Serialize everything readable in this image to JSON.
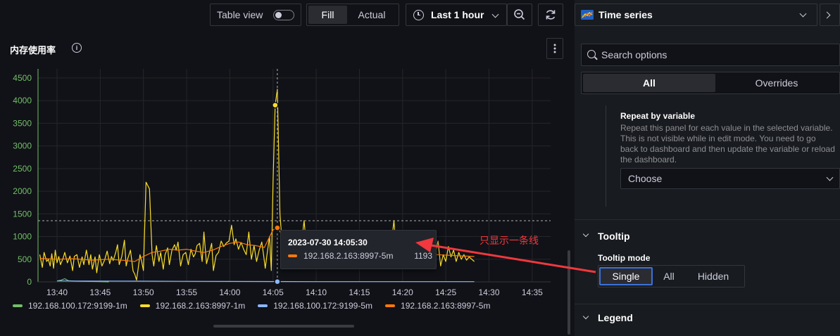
{
  "toolbar": {
    "table_view_label": "Table view",
    "fill_label": "Fill",
    "actual_label": "Actual",
    "time_range_label": "Last 1 hour",
    "clock_icon": "clock-icon",
    "zoom_out_icon": "zoom-out-icon",
    "refresh_icon": "refresh-icon"
  },
  "panel": {
    "title": "内存使用率",
    "info_icon": "info-icon",
    "menu_icon": "kebab-menu-icon"
  },
  "chart_data": {
    "type": "line",
    "yticks": [
      0,
      500,
      1000,
      1500,
      2000,
      2500,
      3000,
      3500,
      4000,
      4500
    ],
    "ylim": [
      0,
      4700
    ],
    "xticks": [
      "13:40",
      "13:45",
      "13:50",
      "13:55",
      "14:00",
      "14:05",
      "14:10",
      "14:15",
      "14:20",
      "14:25",
      "14:30",
      "14:35"
    ],
    "threshold": 1350,
    "hover_time": "14:05:30",
    "series": [
      {
        "name": "192.168.100.172:9199-1m",
        "color": "#73bf69",
        "points": [
          [
            0.0,
            20
          ],
          [
            0.5,
            40
          ],
          [
            0.9,
            70
          ],
          [
            1.3,
            25
          ],
          [
            2.0,
            15
          ],
          [
            4.0,
            10
          ],
          [
            5.0,
            5
          ],
          [
            6.0,
            0
          ]
        ]
      },
      {
        "name": "192.168.2.163:8997-1m",
        "color": "#fade2a",
        "points": [
          [
            -2.0,
            600
          ],
          [
            -1.7,
            320
          ],
          [
            -1.5,
            650
          ],
          [
            -1.2,
            450
          ],
          [
            -1.0,
            500
          ],
          [
            -0.8,
            350
          ],
          [
            -0.6,
            620
          ],
          [
            -0.4,
            300
          ],
          [
            -0.2,
            700
          ],
          [
            0.0,
            420
          ],
          [
            0.2,
            560
          ],
          [
            0.4,
            380
          ],
          [
            0.7,
            520
          ],
          [
            0.9,
            650
          ],
          [
            1.2,
            420
          ],
          [
            1.5,
            570
          ],
          [
            1.8,
            250
          ],
          [
            2.0,
            560
          ],
          [
            2.3,
            600
          ],
          [
            2.6,
            320
          ],
          [
            2.9,
            550
          ],
          [
            3.1,
            380
          ],
          [
            3.4,
            700
          ],
          [
            3.7,
            380
          ],
          [
            3.9,
            600
          ],
          [
            4.1,
            280
          ],
          [
            4.4,
            550
          ],
          [
            4.6,
            200
          ],
          [
            4.9,
            600
          ],
          [
            5.2,
            350
          ],
          [
            5.5,
            480
          ],
          [
            5.8,
            680
          ],
          [
            6.1,
            400
          ],
          [
            6.3,
            560
          ],
          [
            6.5,
            470
          ],
          [
            6.8,
            650
          ],
          [
            7.0,
            820
          ],
          [
            7.2,
            380
          ],
          [
            7.5,
            560
          ],
          [
            7.8,
            920
          ],
          [
            8.0,
            350
          ],
          [
            8.2,
            520
          ],
          [
            8.5,
            700
          ],
          [
            8.8,
            240
          ],
          [
            9.0,
            170
          ],
          [
            9.2,
            40
          ],
          [
            9.4,
            300
          ],
          [
            9.6,
            600
          ],
          [
            9.8,
            450
          ],
          [
            10.0,
            250
          ],
          [
            10.3,
            2200
          ],
          [
            10.7,
            2050
          ],
          [
            11.0,
            600
          ],
          [
            11.2,
            350
          ],
          [
            11.5,
            800
          ],
          [
            11.8,
            450
          ],
          [
            12.0,
            650
          ],
          [
            12.3,
            280
          ],
          [
            12.5,
            600
          ],
          [
            12.8,
            750
          ],
          [
            13.0,
            380
          ],
          [
            13.3,
            700
          ],
          [
            13.6,
            820
          ],
          [
            13.8,
            700
          ],
          [
            14.0,
            880
          ],
          [
            14.3,
            350
          ],
          [
            14.6,
            600
          ],
          [
            14.9,
            650
          ],
          [
            15.2,
            380
          ],
          [
            15.5,
            720
          ],
          [
            15.8,
            550
          ],
          [
            16.0,
            620
          ],
          [
            16.2,
            800
          ],
          [
            16.5,
            850
          ],
          [
            16.8,
            450
          ],
          [
            17.0,
            1100
          ],
          [
            17.3,
            400
          ],
          [
            17.6,
            620
          ],
          [
            17.9,
            850
          ],
          [
            18.1,
            250
          ],
          [
            18.4,
            580
          ],
          [
            18.7,
            650
          ],
          [
            19.0,
            900
          ],
          [
            19.3,
            780
          ],
          [
            19.6,
            860
          ],
          [
            19.9,
            900
          ],
          [
            20.2,
            1250
          ],
          [
            20.5,
            820
          ],
          [
            20.7,
            950
          ],
          [
            21.0,
            720
          ],
          [
            21.3,
            870
          ],
          [
            21.6,
            720
          ],
          [
            21.9,
            600
          ],
          [
            22.2,
            1100
          ],
          [
            22.5,
            500
          ],
          [
            22.8,
            800
          ],
          [
            23.1,
            450
          ],
          [
            23.4,
            700
          ],
          [
            23.7,
            880
          ],
          [
            23.9,
            600
          ],
          [
            24.1,
            300
          ],
          [
            24.3,
            600
          ],
          [
            24.6,
            1000
          ],
          [
            24.8,
            250
          ],
          [
            25.0,
            2200
          ],
          [
            25.25,
            3900
          ],
          [
            25.5,
            4250
          ],
          [
            25.8,
            1500
          ],
          [
            26.0,
            1000
          ],
          [
            26.3,
            800
          ],
          [
            26.6,
            350
          ],
          [
            26.9,
            600
          ],
          [
            27.2,
            900
          ],
          [
            27.5,
            650
          ],
          [
            27.8,
            380
          ],
          [
            28.0,
            700
          ],
          [
            28.3,
            850
          ],
          [
            28.6,
            1350
          ],
          [
            28.9,
            700
          ],
          [
            29.2,
            500
          ],
          [
            29.4,
            350
          ],
          [
            29.7,
            700
          ],
          [
            30.0,
            600
          ],
          [
            30.3,
            800
          ],
          [
            30.6,
            450
          ],
          [
            30.9,
            650
          ],
          [
            31.2,
            1050
          ],
          [
            31.5,
            600
          ],
          [
            31.8,
            1100
          ],
          [
            32.1,
            650
          ],
          [
            32.4,
            850
          ],
          [
            32.7,
            300
          ],
          [
            33.0,
            600
          ],
          [
            33.3,
            800
          ],
          [
            33.6,
            500
          ],
          [
            33.9,
            1000
          ],
          [
            34.2,
            650
          ],
          [
            34.5,
            700
          ],
          [
            34.8,
            950
          ],
          [
            35.1,
            500
          ],
          [
            35.4,
            700
          ],
          [
            35.7,
            650
          ],
          [
            36.0,
            900
          ],
          [
            36.3,
            600
          ],
          [
            36.6,
            800
          ],
          [
            36.9,
            450
          ],
          [
            37.2,
            700
          ],
          [
            37.5,
            950
          ],
          [
            37.8,
            600
          ],
          [
            38.1,
            1000
          ],
          [
            38.4,
            650
          ],
          [
            38.7,
            850
          ],
          [
            39.0,
            1350
          ],
          [
            39.3,
            600
          ],
          [
            39.6,
            900
          ],
          [
            39.9,
            1100
          ],
          [
            40.2,
            750
          ],
          [
            40.5,
            950
          ],
          [
            40.8,
            600
          ],
          [
            41.1,
            850
          ],
          [
            41.4,
            1000
          ],
          [
            41.7,
            400
          ],
          [
            42.0,
            600
          ],
          [
            42.3,
            350
          ],
          [
            42.6,
            900
          ],
          [
            42.9,
            620
          ],
          [
            43.2,
            1000
          ],
          [
            43.5,
            550
          ],
          [
            43.8,
            650
          ],
          [
            44.1,
            900
          ],
          [
            44.4,
            350
          ],
          [
            44.7,
            600
          ],
          [
            45.0,
            450
          ],
          [
            45.3,
            780
          ],
          [
            45.6,
            550
          ],
          [
            45.9,
            700
          ],
          [
            46.2,
            450
          ],
          [
            46.5,
            650
          ],
          [
            46.8,
            500
          ],
          [
            47.1,
            600
          ],
          [
            47.4,
            480
          ],
          [
            47.7,
            550
          ],
          [
            48.0,
            500
          ],
          [
            48.3,
            450
          ]
        ]
      },
      {
        "name": "192.168.100.172:9199-5m",
        "color": "#8ab8ff",
        "points": [
          [
            0.0,
            20
          ],
          [
            10.0,
            15
          ],
          [
            20.0,
            10
          ],
          [
            30.0,
            5
          ],
          [
            40.0,
            5
          ],
          [
            48.3,
            5
          ]
        ]
      },
      {
        "name": "192.168.2.163:8997-5m",
        "color": "#ff780a",
        "points": [
          [
            -2.0,
            520
          ],
          [
            0.0,
            500
          ],
          [
            2.0,
            510
          ],
          [
            4.0,
            480
          ],
          [
            6.0,
            500
          ],
          [
            8.0,
            470
          ],
          [
            9.0,
            450
          ],
          [
            10.0,
            560
          ],
          [
            11.0,
            650
          ],
          [
            12.0,
            680
          ],
          [
            13.0,
            720
          ],
          [
            14.0,
            700
          ],
          [
            15.0,
            720
          ],
          [
            16.0,
            680
          ],
          [
            17.0,
            650
          ],
          [
            18.0,
            700
          ],
          [
            19.0,
            780
          ],
          [
            20.0,
            850
          ],
          [
            21.0,
            880
          ],
          [
            22.0,
            820
          ],
          [
            23.0,
            800
          ],
          [
            24.0,
            760
          ],
          [
            25.0,
            1150
          ],
          [
            25.5,
            1193
          ],
          [
            26.0,
            1050
          ],
          [
            27.0,
            800
          ],
          [
            28.0,
            700
          ],
          [
            29.0,
            680
          ],
          [
            30.0,
            650
          ],
          [
            32.0,
            700
          ],
          [
            34.0,
            720
          ],
          [
            36.0,
            680
          ],
          [
            38.0,
            700
          ],
          [
            40.0,
            720
          ],
          [
            42.0,
            650
          ],
          [
            44.0,
            600
          ],
          [
            46.0,
            580
          ],
          [
            48.3,
            560
          ]
        ]
      }
    ]
  },
  "tooltip": {
    "time": "2023-07-30 14:05:30",
    "series": "192.168.2.163:8997-5m",
    "value": "1193",
    "color": "#ff780a"
  },
  "annotation": {
    "text": "只显示一条线",
    "color": "#f0383e"
  },
  "options": {
    "viz_name": "Time series",
    "viz_icon": "time-series-icon",
    "search_placeholder": "Search options",
    "tab_all": "All",
    "tab_overrides": "Overrides",
    "repeat_label": "Repeat by variable",
    "repeat_desc": "Repeat this panel for each value in the selected variable. This is not visible while in edit mode. You need to go back to dashboard and then update the variable or reload the dashboard.",
    "choose_placeholder": "Choose",
    "tooltip_section": "Tooltip",
    "tooltip_mode_label": "Tooltip mode",
    "tooltip_modes": [
      "Single",
      "All",
      "Hidden"
    ],
    "legend_section": "Legend",
    "accent": "#3d71d9"
  }
}
